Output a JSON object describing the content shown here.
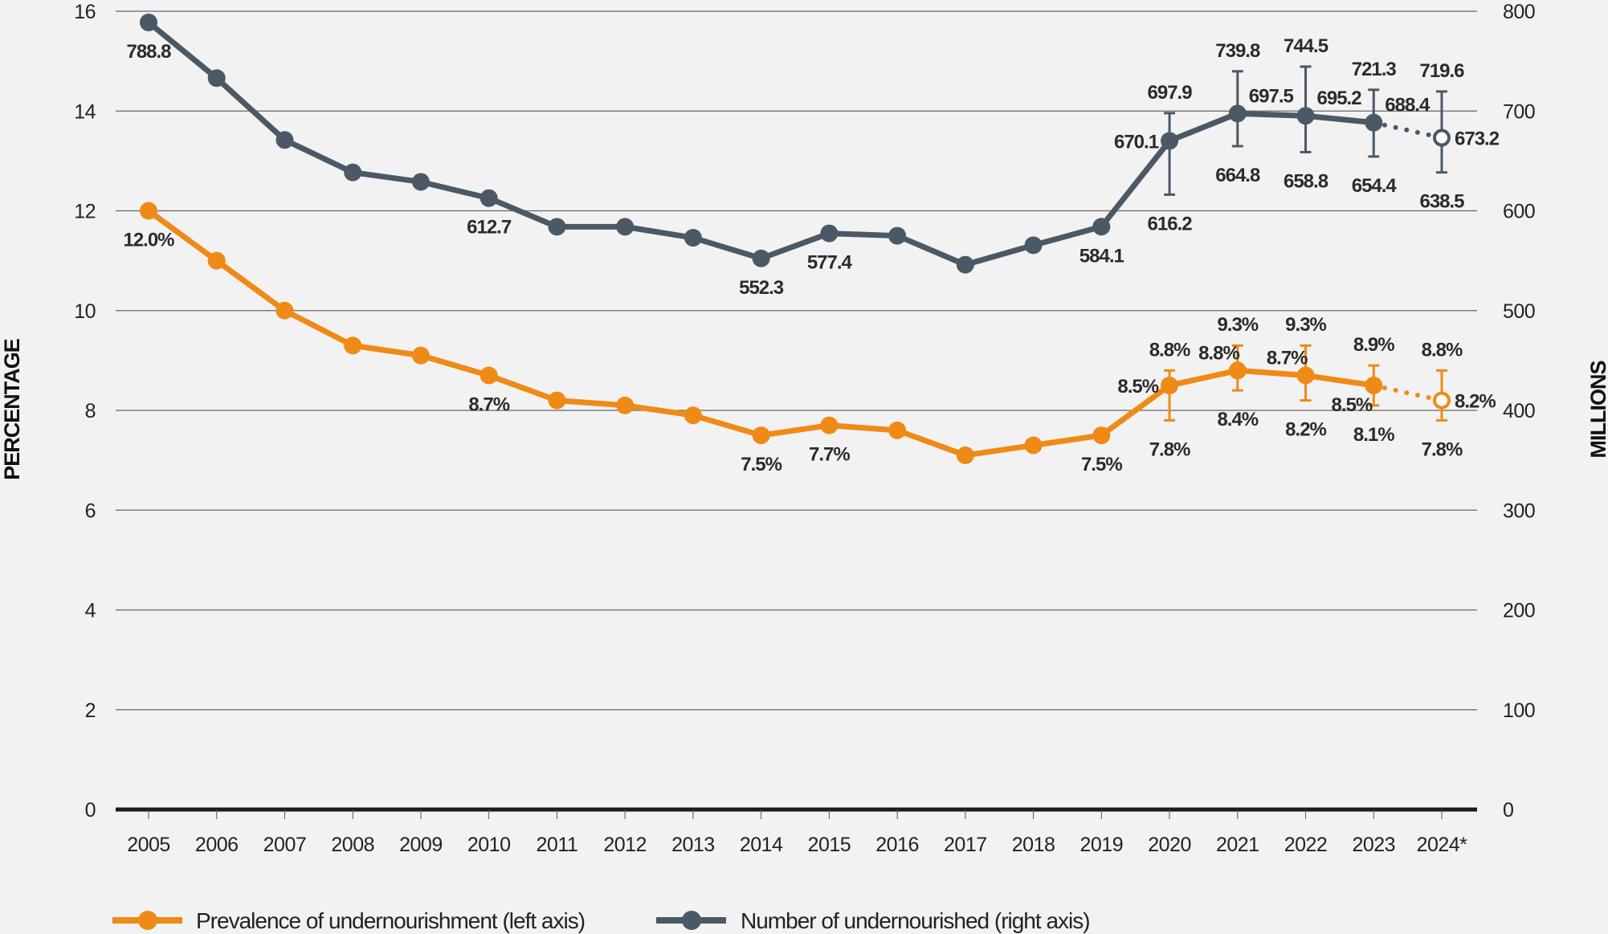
{
  "chart_data": {
    "type": "line",
    "title": "",
    "xlabel": "",
    "ylabel_left": "PERCENTAGE",
    "ylabel_right": "MILLIONS",
    "x": [
      "2005",
      "2006",
      "2007",
      "2008",
      "2009",
      "2010",
      "2011",
      "2012",
      "2013",
      "2014",
      "2015",
      "2016",
      "2017",
      "2018",
      "2019",
      "2020",
      "2021",
      "2022",
      "2023",
      "2024*"
    ],
    "ylim_left": [
      0,
      16
    ],
    "yticks_left": [
      0,
      2,
      4,
      6,
      8,
      10,
      12,
      14,
      16
    ],
    "ylim_right": [
      0,
      800
    ],
    "yticks_right": [
      0,
      100,
      200,
      300,
      400,
      500,
      600,
      700,
      800
    ],
    "grid": true,
    "legend_position": "bottom-left",
    "projected_last_point": true,
    "series": [
      {
        "name": "Prevalence of undernourishment (left axis)",
        "axis": "left",
        "color": "#ef8a17",
        "values": [
          12.0,
          11.0,
          10.0,
          9.3,
          9.1,
          8.7,
          8.2,
          8.1,
          7.9,
          7.5,
          7.7,
          7.6,
          7.1,
          7.3,
          7.5,
          8.5,
          8.8,
          8.7,
          8.5,
          8.2
        ],
        "error_bars": {
          "2020": [
            7.8,
            8.8
          ],
          "2021": [
            8.4,
            9.3
          ],
          "2022": [
            8.2,
            9.3
          ],
          "2023": [
            8.1,
            8.9
          ],
          "2024*": [
            7.8,
            8.8
          ]
        },
        "labels": [
          {
            "x": "2005",
            "value": 12.0,
            "text": "12.0%",
            "pos": "below"
          },
          {
            "x": "2010",
            "value": 8.7,
            "text": "8.7%",
            "pos": "below"
          },
          {
            "x": "2014",
            "value": 7.5,
            "text": "7.5%",
            "pos": "below"
          },
          {
            "x": "2015",
            "value": 7.7,
            "text": "7.7%",
            "pos": "below"
          },
          {
            "x": "2019",
            "value": 7.5,
            "text": "7.5%",
            "pos": "below"
          },
          {
            "x": "2020",
            "value": 8.5,
            "text": "8.5%",
            "pos": "left"
          },
          {
            "x": "2020",
            "value": 8.8,
            "text": "8.8%",
            "pos": "above"
          },
          {
            "x": "2020",
            "value": 7.8,
            "text": "7.8%",
            "pos": "below"
          },
          {
            "x": "2021",
            "value": 8.8,
            "text": "8.8%",
            "pos": "above-left"
          },
          {
            "x": "2021",
            "value": 9.3,
            "text": "9.3%",
            "pos": "above"
          },
          {
            "x": "2021",
            "value": 8.4,
            "text": "8.4%",
            "pos": "below"
          },
          {
            "x": "2022",
            "value": 8.7,
            "text": "8.7%",
            "pos": "above-left"
          },
          {
            "x": "2022",
            "value": 9.3,
            "text": "9.3%",
            "pos": "above"
          },
          {
            "x": "2022",
            "value": 8.2,
            "text": "8.2%",
            "pos": "below"
          },
          {
            "x": "2023",
            "value": 8.5,
            "text": "8.5%",
            "pos": "below-left"
          },
          {
            "x": "2023",
            "value": 8.9,
            "text": "8.9%",
            "pos": "above"
          },
          {
            "x": "2023",
            "value": 8.1,
            "text": "8.1%",
            "pos": "below"
          },
          {
            "x": "2024*",
            "value": 8.2,
            "text": "8.2%",
            "pos": "right"
          },
          {
            "x": "2024*",
            "value": 8.8,
            "text": "8.8%",
            "pos": "above"
          },
          {
            "x": "2024*",
            "value": 7.8,
            "text": "7.8%",
            "pos": "below"
          }
        ]
      },
      {
        "name": "Number of undernourished (right axis)",
        "axis": "right",
        "color": "#4b5967",
        "values": [
          788.8,
          733,
          671,
          638.5,
          629,
          612.7,
          584,
          584,
          573,
          552.3,
          577.4,
          575,
          546,
          565.5,
          584.1,
          670.1,
          697.5,
          695.2,
          688.4,
          673.2
        ],
        "error_bars": {
          "2020": [
            616.2,
            697.9
          ],
          "2021": [
            664.8,
            739.8
          ],
          "2022": [
            658.8,
            744.5
          ],
          "2023": [
            654.4,
            721.3
          ],
          "2024*": [
            638.5,
            719.6
          ]
        },
        "labels": [
          {
            "x": "2005",
            "value": 788.8,
            "text": "788.8",
            "pos": "below"
          },
          {
            "x": "2010",
            "value": 612.7,
            "text": "612.7",
            "pos": "below"
          },
          {
            "x": "2014",
            "value": 552.3,
            "text": "552.3",
            "pos": "below"
          },
          {
            "x": "2015",
            "value": 577.4,
            "text": "577.4",
            "pos": "below"
          },
          {
            "x": "2019",
            "value": 584.1,
            "text": "584.1",
            "pos": "below"
          },
          {
            "x": "2020",
            "value": 670.1,
            "text": "670.1",
            "pos": "left"
          },
          {
            "x": "2020",
            "value": 697.9,
            "text": "697.9",
            "pos": "above"
          },
          {
            "x": "2020",
            "value": 616.2,
            "text": "616.2",
            "pos": "below"
          },
          {
            "x": "2021",
            "value": 697.5,
            "text": "697.5",
            "pos": "above-right"
          },
          {
            "x": "2021",
            "value": 739.8,
            "text": "739.8",
            "pos": "above"
          },
          {
            "x": "2021",
            "value": 664.8,
            "text": "664.8",
            "pos": "below"
          },
          {
            "x": "2022",
            "value": 695.2,
            "text": "695.2",
            "pos": "above-right"
          },
          {
            "x": "2022",
            "value": 744.5,
            "text": "744.5",
            "pos": "above"
          },
          {
            "x": "2022",
            "value": 658.8,
            "text": "658.8",
            "pos": "below"
          },
          {
            "x": "2023",
            "value": 688.4,
            "text": "688.4",
            "pos": "above-right"
          },
          {
            "x": "2023",
            "value": 721.3,
            "text": "721.3",
            "pos": "above"
          },
          {
            "x": "2023",
            "value": 654.4,
            "text": "654.4",
            "pos": "below"
          },
          {
            "x": "2024*",
            "value": 673.2,
            "text": "673.2",
            "pos": "right"
          },
          {
            "x": "2024*",
            "value": 719.6,
            "text": "719.6",
            "pos": "above"
          },
          {
            "x": "2024*",
            "value": 638.5,
            "text": "638.5",
            "pos": "below"
          }
        ]
      }
    ]
  }
}
